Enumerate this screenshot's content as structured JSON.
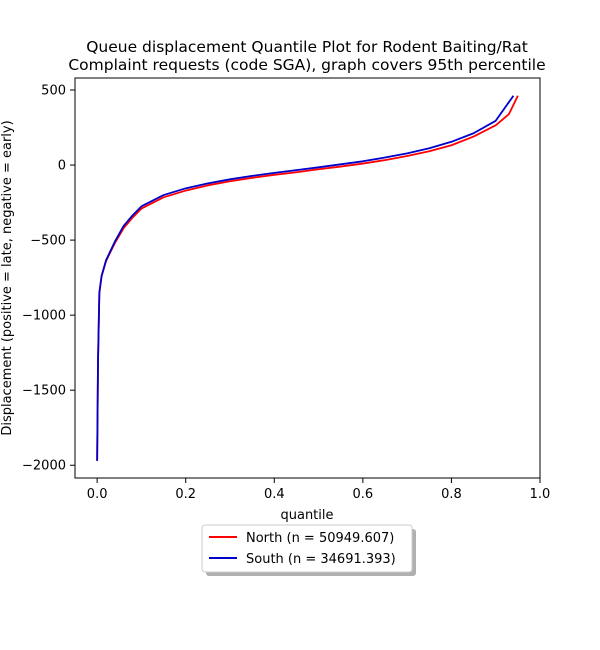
{
  "chart_data": {
    "type": "line",
    "title_line1": "Queue displacement Quantile Plot for Rodent Baiting/Rat",
    "title_line2": "Complaint  requests (code SGA), graph covers 95th percentile",
    "xlabel": "quantile",
    "ylabel": "Displacement (positive = late, negative = early)",
    "xlim": [
      -0.05,
      1.0
    ],
    "ylim": [
      -2085,
      580
    ],
    "xticks": [
      0.0,
      0.2,
      0.4,
      0.6,
      0.8,
      1.0
    ],
    "xtick_labels": [
      "0.0",
      "0.2",
      "0.4",
      "0.6",
      "0.8",
      "1.0"
    ],
    "yticks": [
      500,
      0,
      -500,
      -1000,
      -1500,
      -2000
    ],
    "ytick_labels": [
      "500",
      "0",
      "−500",
      "−1000",
      "−1500",
      "−2000"
    ],
    "legend_position": "below-center",
    "series": [
      {
        "name": "North (n = 50949.607)",
        "color": "#ff0000",
        "points": [
          [
            0.0,
            -1970
          ],
          [
            0.002,
            -1300
          ],
          [
            0.005,
            -850
          ],
          [
            0.01,
            -740
          ],
          [
            0.02,
            -640
          ],
          [
            0.04,
            -520
          ],
          [
            0.06,
            -420
          ],
          [
            0.08,
            -350
          ],
          [
            0.1,
            -290
          ],
          [
            0.15,
            -215
          ],
          [
            0.2,
            -170
          ],
          [
            0.25,
            -135
          ],
          [
            0.3,
            -108
          ],
          [
            0.35,
            -85
          ],
          [
            0.4,
            -65
          ],
          [
            0.45,
            -48
          ],
          [
            0.5,
            -28
          ],
          [
            0.55,
            -10
          ],
          [
            0.6,
            10
          ],
          [
            0.65,
            33
          ],
          [
            0.7,
            60
          ],
          [
            0.75,
            92
          ],
          [
            0.8,
            132
          ],
          [
            0.85,
            190
          ],
          [
            0.9,
            265
          ],
          [
            0.93,
            340
          ],
          [
            0.95,
            462
          ]
        ]
      },
      {
        "name": "South (n = 34691.393)",
        "color": "#0000cd",
        "points": [
          [
            0.0,
            -1970
          ],
          [
            0.002,
            -1300
          ],
          [
            0.005,
            -850
          ],
          [
            0.01,
            -740
          ],
          [
            0.02,
            -635
          ],
          [
            0.04,
            -510
          ],
          [
            0.06,
            -405
          ],
          [
            0.08,
            -335
          ],
          [
            0.1,
            -275
          ],
          [
            0.15,
            -200
          ],
          [
            0.2,
            -155
          ],
          [
            0.25,
            -122
          ],
          [
            0.3,
            -95
          ],
          [
            0.35,
            -72
          ],
          [
            0.4,
            -52
          ],
          [
            0.45,
            -34
          ],
          [
            0.5,
            -15
          ],
          [
            0.55,
            5
          ],
          [
            0.6,
            25
          ],
          [
            0.65,
            50
          ],
          [
            0.7,
            78
          ],
          [
            0.75,
            112
          ],
          [
            0.8,
            155
          ],
          [
            0.85,
            212
          ],
          [
            0.9,
            295
          ],
          [
            0.94,
            462
          ]
        ]
      }
    ]
  }
}
